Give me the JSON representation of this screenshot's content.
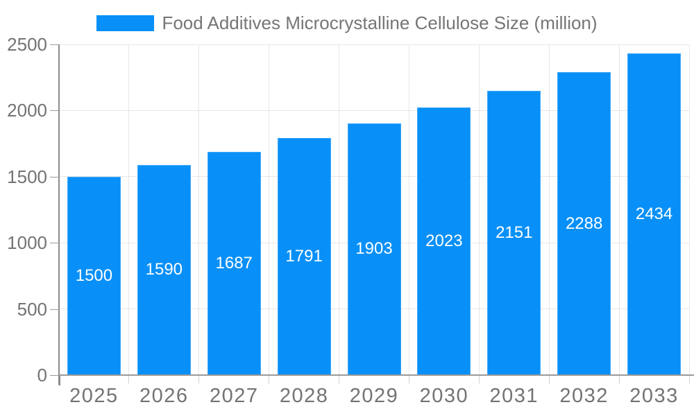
{
  "legend": {
    "label": "Food Additives Microcrystalline Cellulose Size (million)"
  },
  "chart_data": {
    "type": "bar",
    "title": "Food Additives Microcrystalline Cellulose Size (million)",
    "categories": [
      "2025",
      "2026",
      "2027",
      "2028",
      "2029",
      "2030",
      "2031",
      "2032",
      "2033"
    ],
    "values": [
      1500,
      1590,
      1687,
      1791,
      1903,
      2023,
      2151,
      2288,
      2434
    ],
    "xlabel": "",
    "ylabel": "",
    "ylim": [
      0,
      2500
    ],
    "yticks": [
      0,
      500,
      1000,
      1500,
      2000,
      2500
    ],
    "grid": true,
    "legend_position": "top",
    "colors": {
      "bar": "#0890f8",
      "value_label": "#ffffff",
      "axis_label": "#737373",
      "title": "#757575",
      "gridline": "#e6e6e6"
    }
  }
}
